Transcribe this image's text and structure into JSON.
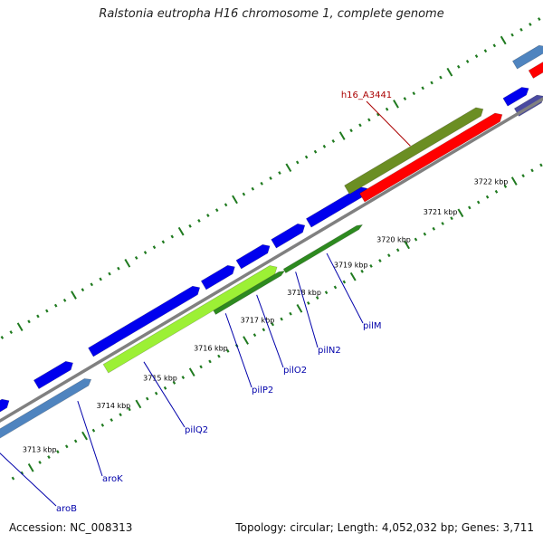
{
  "title": "Ralstonia eutropha H16 chromosome 1, complete genome",
  "footer": {
    "accession": "Accession: NC_008313",
    "summary": "Topology: circular; Length: 4,052,032 bp; Genes: 3,711"
  },
  "colors": {
    "backbone": "#808080",
    "tick_dot": "#1f7a1f",
    "cds_blue": "#0000ee",
    "gene_steelblue": "#4f84bf",
    "gene_lightgreen": "#9cf035",
    "gene_darkgreen": "#2d8a1f",
    "gene_olive": "#6b8e23",
    "gene_red": "#ff0000",
    "gene_slate": "#4a4aa0",
    "label_blue": "#0000aa",
    "label_red": "#aa0000"
  },
  "scale_ticks": [
    {
      "label": "3713 kbp"
    },
    {
      "label": "3714 kbp"
    },
    {
      "label": "3715 kbp"
    },
    {
      "label": "3716 kbp"
    },
    {
      "label": "3717 kbp"
    },
    {
      "label": "3718 kbp"
    },
    {
      "label": "3719 kbp"
    },
    {
      "label": "3720 kbp"
    },
    {
      "label": "3721 kbp"
    },
    {
      "label": "3722 kbp"
    }
  ],
  "gene_labels": [
    {
      "name": "aroB",
      "color": "label_blue"
    },
    {
      "name": "aroK",
      "color": "label_blue"
    },
    {
      "name": "pilQ2",
      "color": "label_blue"
    },
    {
      "name": "pilP2",
      "color": "label_blue"
    },
    {
      "name": "pilO2",
      "color": "label_blue"
    },
    {
      "name": "pilN2",
      "color": "label_blue"
    },
    {
      "name": "pilM",
      "color": "label_blue"
    },
    {
      "name": "h16_A3441",
      "color": "label_red"
    }
  ]
}
